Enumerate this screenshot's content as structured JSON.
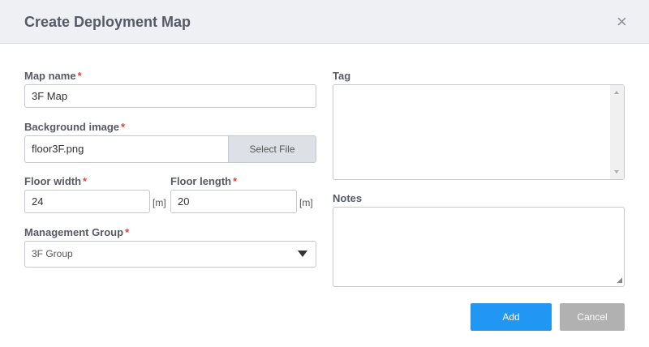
{
  "dialog": {
    "title": "Create Deployment Map",
    "close": "×"
  },
  "form": {
    "map_name": {
      "label": "Map name",
      "required": "*",
      "value": "3F Map"
    },
    "background_image": {
      "label": "Background image",
      "required": "*",
      "value": "floor3F.png",
      "button": "Select File"
    },
    "floor_width": {
      "label": "Floor width",
      "required": "*",
      "value": "24",
      "unit": "[m]"
    },
    "floor_length": {
      "label": "Floor length",
      "required": "*",
      "value": "20",
      "unit": "[m]"
    },
    "management_group": {
      "label": "Management Group",
      "required": "*",
      "value": "3F Group"
    },
    "tag": {
      "label": "Tag",
      "value": ""
    },
    "notes": {
      "label": "Notes",
      "value": ""
    }
  },
  "buttons": {
    "add": "Add",
    "cancel": "Cancel"
  },
  "colors": {
    "primary": "#2196f3",
    "disabled": "#b1b1b1",
    "required": "#e0443c"
  }
}
